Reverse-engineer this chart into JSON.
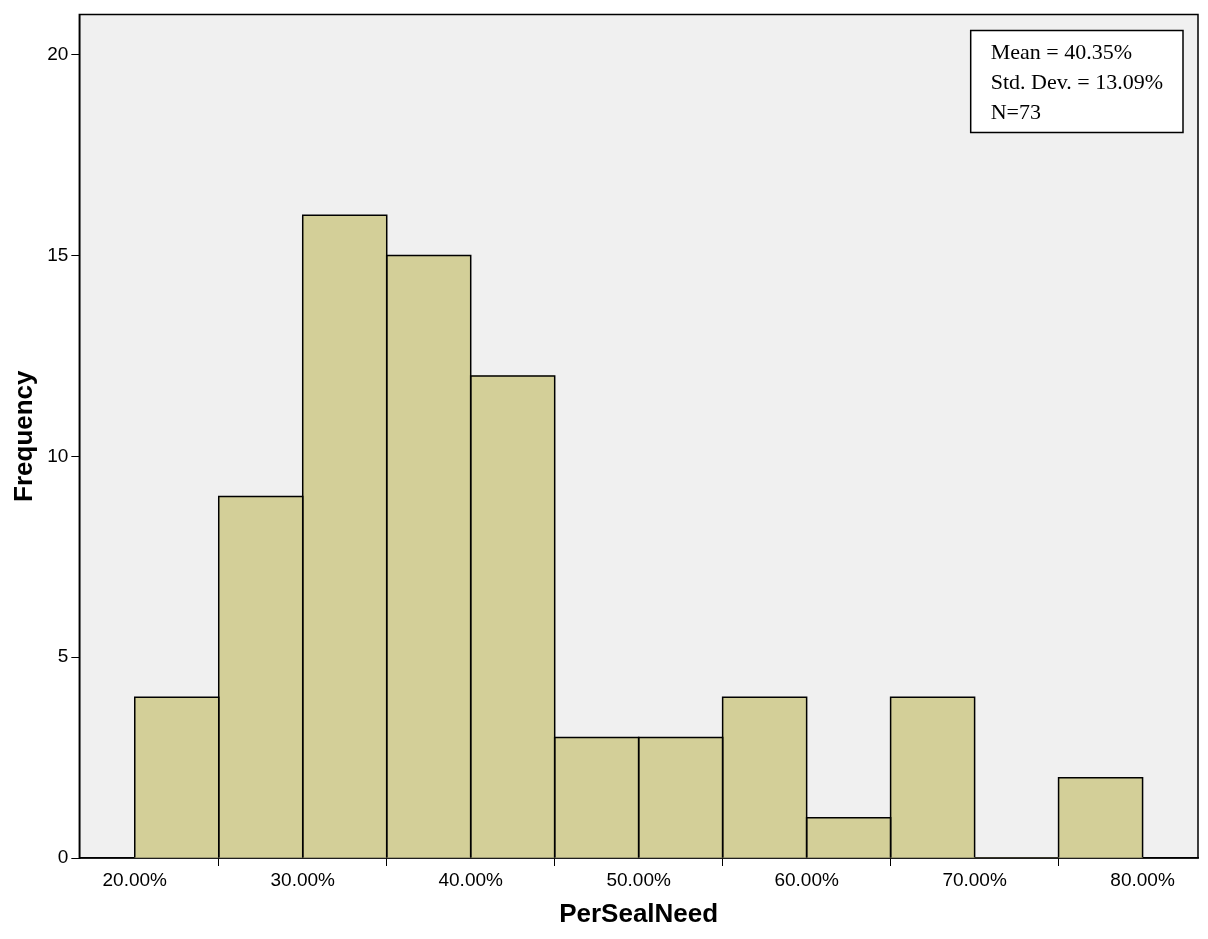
{
  "chart_data": {
    "type": "histogram",
    "xlabel": "PerSealNeed",
    "ylabel": "Frequency",
    "bins": [
      20,
      25,
      30,
      35,
      40,
      45,
      50,
      55,
      60,
      65,
      70,
      75,
      80
    ],
    "values": [
      4,
      9,
      16,
      15,
      12,
      3,
      3,
      4,
      1,
      4,
      0,
      2
    ],
    "color": "#d3cf98",
    "xlim": [
      16.7,
      83.3
    ],
    "xticks": [
      {
        "value": 20,
        "label": "20.00%"
      },
      {
        "value": 30,
        "label": "30.00%"
      },
      {
        "value": 40,
        "label": "40.00%"
      },
      {
        "value": 50,
        "label": "50.00%"
      },
      {
        "value": 60,
        "label": "60.00%"
      },
      {
        "value": 70,
        "label": "70.00%"
      },
      {
        "value": 80,
        "label": "80.00%"
      }
    ],
    "ylim": [
      0,
      21
    ],
    "yticks": [
      0,
      5,
      10,
      15,
      20
    ],
    "grid": false,
    "legend": false,
    "annotations": [
      "Mean = 40.35%",
      "Std. Dev. = 13.09%",
      "N=73"
    ]
  }
}
